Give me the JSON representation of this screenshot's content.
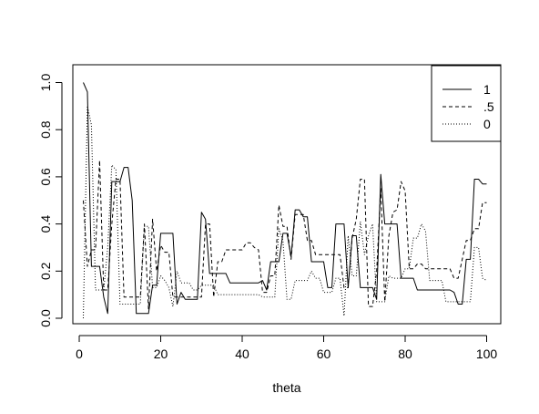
{
  "chart_data": {
    "type": "line",
    "xlabel": "theta",
    "ylabel": "",
    "title": "",
    "xlim": [
      1,
      100
    ],
    "ylim": [
      0,
      1
    ],
    "x_ticks": [
      0,
      20,
      40,
      60,
      80,
      100
    ],
    "y_ticks": [
      0.0,
      0.2,
      0.4,
      0.6,
      0.8,
      1.0
    ],
    "x_tick_labels": [
      "0",
      "20",
      "40",
      "60",
      "80",
      "100"
    ],
    "y_tick_labels": [
      "0.0",
      "0.2",
      "0.4",
      "0.6",
      "0.8",
      "1.0"
    ],
    "grid": false,
    "legend_position": "top-right",
    "series": [
      {
        "name": "1",
        "linestyle": "solid",
        "x": [
          1,
          2,
          3,
          4,
          5,
          6,
          7,
          8,
          9,
          10,
          11,
          12,
          13,
          14,
          15,
          16,
          17,
          18,
          19,
          20,
          21,
          22,
          23,
          24,
          25,
          26,
          27,
          28,
          29,
          30,
          31,
          32,
          33,
          34,
          35,
          36,
          37,
          38,
          39,
          40,
          41,
          42,
          43,
          44,
          45,
          46,
          47,
          48,
          49,
          50,
          51,
          52,
          53,
          54,
          55,
          56,
          57,
          58,
          59,
          60,
          61,
          62,
          63,
          64,
          65,
          66,
          67,
          68,
          69,
          70,
          71,
          72,
          73,
          74,
          75,
          76,
          77,
          78,
          79,
          80,
          81,
          82,
          83,
          84,
          85,
          86,
          87,
          88,
          89,
          90,
          91,
          92,
          93,
          94,
          95,
          96,
          97,
          98,
          99,
          100
        ],
        "y": [
          1.0,
          0.96,
          0.22,
          0.22,
          0.22,
          0.09,
          0.02,
          0.58,
          0.58,
          0.58,
          0.64,
          0.64,
          0.5,
          0.02,
          0.02,
          0.02,
          0.02,
          0.14,
          0.14,
          0.36,
          0.36,
          0.36,
          0.36,
          0.06,
          0.11,
          0.08,
          0.08,
          0.08,
          0.08,
          0.45,
          0.42,
          0.19,
          0.19,
          0.19,
          0.19,
          0.19,
          0.15,
          0.15,
          0.15,
          0.15,
          0.15,
          0.15,
          0.15,
          0.15,
          0.16,
          0.12,
          0.24,
          0.24,
          0.24,
          0.36,
          0.36,
          0.26,
          0.46,
          0.46,
          0.43,
          0.43,
          0.24,
          0.24,
          0.24,
          0.24,
          0.13,
          0.13,
          0.4,
          0.4,
          0.4,
          0.13,
          0.35,
          0.35,
          0.13,
          0.13,
          0.13,
          0.13,
          0.08,
          0.61,
          0.4,
          0.4,
          0.4,
          0.4,
          0.17,
          0.17,
          0.17,
          0.17,
          0.12,
          0.12,
          0.12,
          0.12,
          0.12,
          0.12,
          0.12,
          0.12,
          0.12,
          0.11,
          0.06,
          0.06,
          0.25,
          0.25,
          0.59,
          0.59,
          0.57,
          0.57
        ]
      },
      {
        "name": ".5",
        "linestyle": "dashed",
        "x": [
          1,
          2,
          3,
          4,
          5,
          6,
          7,
          8,
          9,
          10,
          11,
          12,
          13,
          14,
          15,
          16,
          17,
          18,
          19,
          20,
          21,
          22,
          23,
          24,
          25,
          26,
          27,
          28,
          29,
          30,
          31,
          32,
          33,
          34,
          35,
          36,
          37,
          38,
          39,
          40,
          41,
          42,
          43,
          44,
          45,
          46,
          47,
          48,
          49,
          50,
          51,
          52,
          53,
          54,
          55,
          56,
          57,
          58,
          59,
          60,
          61,
          62,
          63,
          64,
          65,
          66,
          67,
          68,
          69,
          70,
          71,
          72,
          73,
          74,
          75,
          76,
          77,
          78,
          79,
          80,
          81,
          82,
          83,
          84,
          85,
          86,
          87,
          88,
          89,
          90,
          91,
          92,
          93,
          94,
          95,
          96,
          97,
          98,
          99,
          100
        ],
        "y": [
          0.5,
          0.22,
          0.29,
          0.29,
          0.67,
          0.12,
          0.12,
          0.4,
          0.59,
          0.59,
          0.09,
          0.09,
          0.09,
          0.09,
          0.09,
          0.4,
          0.04,
          0.42,
          0.2,
          0.31,
          0.28,
          0.28,
          0.09,
          0.09,
          0.09,
          0.09,
          0.09,
          0.09,
          0.09,
          0.09,
          0.4,
          0.4,
          0.09,
          0.24,
          0.24,
          0.29,
          0.29,
          0.29,
          0.29,
          0.29,
          0.32,
          0.32,
          0.3,
          0.29,
          0.11,
          0.11,
          0.18,
          0.18,
          0.48,
          0.39,
          0.39,
          0.25,
          0.44,
          0.44,
          0.44,
          0.33,
          0.33,
          0.27,
          0.27,
          0.27,
          0.27,
          0.27,
          0.27,
          0.27,
          0.13,
          0.13,
          0.34,
          0.42,
          0.59,
          0.59,
          0.05,
          0.05,
          0.2,
          0.55,
          0.07,
          0.35,
          0.45,
          0.46,
          0.58,
          0.54,
          0.21,
          0.21,
          0.23,
          0.23,
          0.21,
          0.21,
          0.21,
          0.21,
          0.21,
          0.21,
          0.21,
          0.17,
          0.17,
          0.25,
          0.33,
          0.33,
          0.38,
          0.38,
          0.49,
          0.49
        ]
      },
      {
        "name": "0",
        "linestyle": "dotted",
        "x": [
          1,
          2,
          3,
          4,
          5,
          6,
          7,
          8,
          9,
          10,
          11,
          12,
          13,
          14,
          15,
          16,
          17,
          18,
          19,
          20,
          21,
          22,
          23,
          24,
          25,
          26,
          27,
          28,
          29,
          30,
          31,
          32,
          33,
          34,
          35,
          36,
          37,
          38,
          39,
          40,
          41,
          42,
          43,
          44,
          45,
          46,
          47,
          48,
          49,
          50,
          51,
          52,
          53,
          54,
          55,
          56,
          57,
          58,
          59,
          60,
          61,
          62,
          63,
          64,
          65,
          66,
          67,
          68,
          69,
          70,
          71,
          72,
          73,
          74,
          75,
          76,
          77,
          78,
          79,
          80,
          81,
          82,
          83,
          84,
          85,
          86,
          87,
          88,
          89,
          90,
          91,
          92,
          93,
          94,
          95,
          96,
          97,
          98,
          99,
          100
        ],
        "y": [
          0.0,
          0.9,
          0.82,
          0.12,
          0.12,
          0.12,
          0.3,
          0.65,
          0.63,
          0.06,
          0.06,
          0.06,
          0.06,
          0.06,
          0.06,
          0.39,
          0.39,
          0.13,
          0.13,
          0.18,
          0.16,
          0.13,
          0.05,
          0.2,
          0.15,
          0.15,
          0.15,
          0.12,
          0.12,
          0.14,
          0.14,
          0.14,
          0.14,
          0.1,
          0.1,
          0.1,
          0.1,
          0.1,
          0.1,
          0.1,
          0.1,
          0.1,
          0.1,
          0.1,
          0.09,
          0.09,
          0.09,
          0.09,
          0.38,
          0.33,
          0.08,
          0.08,
          0.16,
          0.16,
          0.16,
          0.16,
          0.2,
          0.17,
          0.17,
          0.11,
          0.11,
          0.11,
          0.17,
          0.17,
          0.01,
          0.35,
          0.18,
          0.18,
          0.41,
          0.27,
          0.35,
          0.4,
          0.07,
          0.07,
          0.07,
          0.18,
          0.17,
          0.17,
          0.17,
          0.21,
          0.21,
          0.34,
          0.34,
          0.4,
          0.37,
          0.16,
          0.16,
          0.16,
          0.16,
          0.07,
          0.07,
          0.07,
          0.07,
          0.07,
          0.07,
          0.07,
          0.3,
          0.3,
          0.17,
          0.16
        ]
      }
    ]
  }
}
